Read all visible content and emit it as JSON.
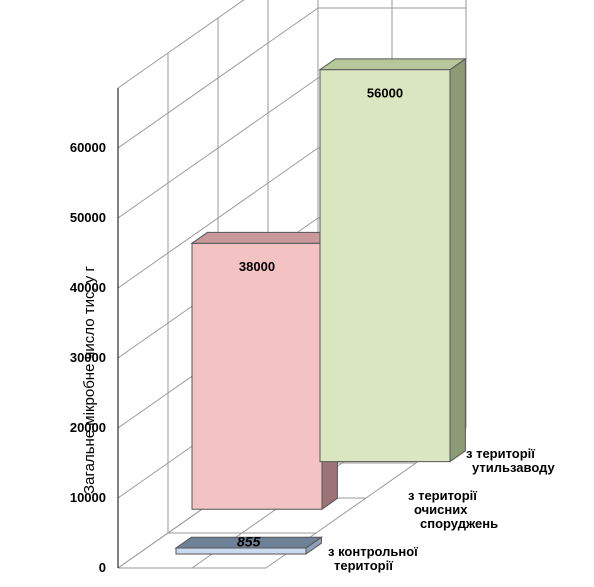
{
  "chart_data": {
    "type": "bar",
    "title": "",
    "ylabel": "Загальне мікробне число тис, у г",
    "ylim": [
      0,
      60000
    ],
    "yticks": [
      "0",
      "10000",
      "20000",
      "30000",
      "40000",
      "50000",
      "60000"
    ],
    "grid": true,
    "categories": [
      [
        "з контрольної",
        "території"
      ],
      [
        "з території",
        "очисних",
        "споруджень"
      ],
      [
        "з території",
        "утильзаводу"
      ]
    ],
    "values": [
      855,
      38000,
      56000
    ],
    "value_labels": [
      "855",
      "38000",
      "56000"
    ],
    "colors": [
      {
        "front": "#c9d9ee",
        "side": "#8fa2b8",
        "top": "#6f8196"
      },
      {
        "front": "#f3c3c4",
        "side": "#9c7376",
        "top": "#c9999b"
      },
      {
        "front": "#d9e6c0",
        "side": "#8c9a76",
        "top": "#b7c79b"
      }
    ]
  }
}
